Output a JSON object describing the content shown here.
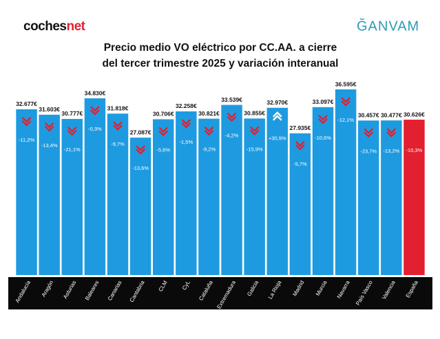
{
  "header": {
    "logo_left": "coches",
    "logo_left_accent": "net",
    "logo_right": "ĞANVAM"
  },
  "chart_data": {
    "type": "bar",
    "title": [
      "Precio medio VO eléctrico por CC.AA. a cierre",
      "del tercer trimestre 2025 y variación interanual"
    ],
    "categories": [
      "Andalucía",
      "Aragón",
      "Asturias",
      "Baleares",
      "Canarias",
      "Cantabria",
      "CLM",
      "CyL",
      "Cataluña",
      "Extremadura",
      "Galicia",
      "La Rioja",
      "Madrid",
      "Murcia",
      "Navarra",
      "País Vasco",
      "Valencia",
      "España"
    ],
    "values": [
      32677,
      31603,
      30777,
      34830,
      31818,
      27087,
      30706,
      32258,
      30821,
      33539,
      30855,
      32970,
      27935,
      33097,
      36595,
      30457,
      30477,
      30626
    ],
    "value_labels": [
      "32.677€",
      "31.603€",
      "30.777€",
      "34.830€",
      "31.818€",
      "27.087€",
      "30.706€",
      "32.258€",
      "30.821€",
      "33.539€",
      "30.855€",
      "32.970€",
      "27.935€",
      "33.097€",
      "36.595€",
      "30.457€",
      "30.477€",
      "30.626€"
    ],
    "changes": [
      -11.2,
      -13.4,
      -21.1,
      -0.3,
      -9.7,
      -13.6,
      -5.6,
      -1.5,
      -9.2,
      -4.2,
      -15.9,
      30.9,
      -5.7,
      -10.6,
      -12.1,
      -23.7,
      -13.2,
      -10.3
    ],
    "change_labels": [
      "-11,2%",
      "-13,4%",
      "-21,1%",
      "-0,3%",
      "-9,7%",
      "-13,6%",
      "-5,6%",
      "-1,5%",
      "-9,2%",
      "-4,2%",
      "-15,9%",
      "+30,9%",
      "-5,7%",
      "-10,6%",
      "-12,1%",
      "-23,7%",
      "-13,2%",
      "-10,3%"
    ],
    "bar_colors": [
      "#1e9be0",
      "#1e9be0",
      "#1e9be0",
      "#1e9be0",
      "#1e9be0",
      "#1e9be0",
      "#1e9be0",
      "#1e9be0",
      "#1e9be0",
      "#1e9be0",
      "#1e9be0",
      "#1e9be0",
      "#1e9be0",
      "#1e9be0",
      "#1e9be0",
      "#1e9be0",
      "#1e9be0",
      "#e3202f"
    ]
  }
}
